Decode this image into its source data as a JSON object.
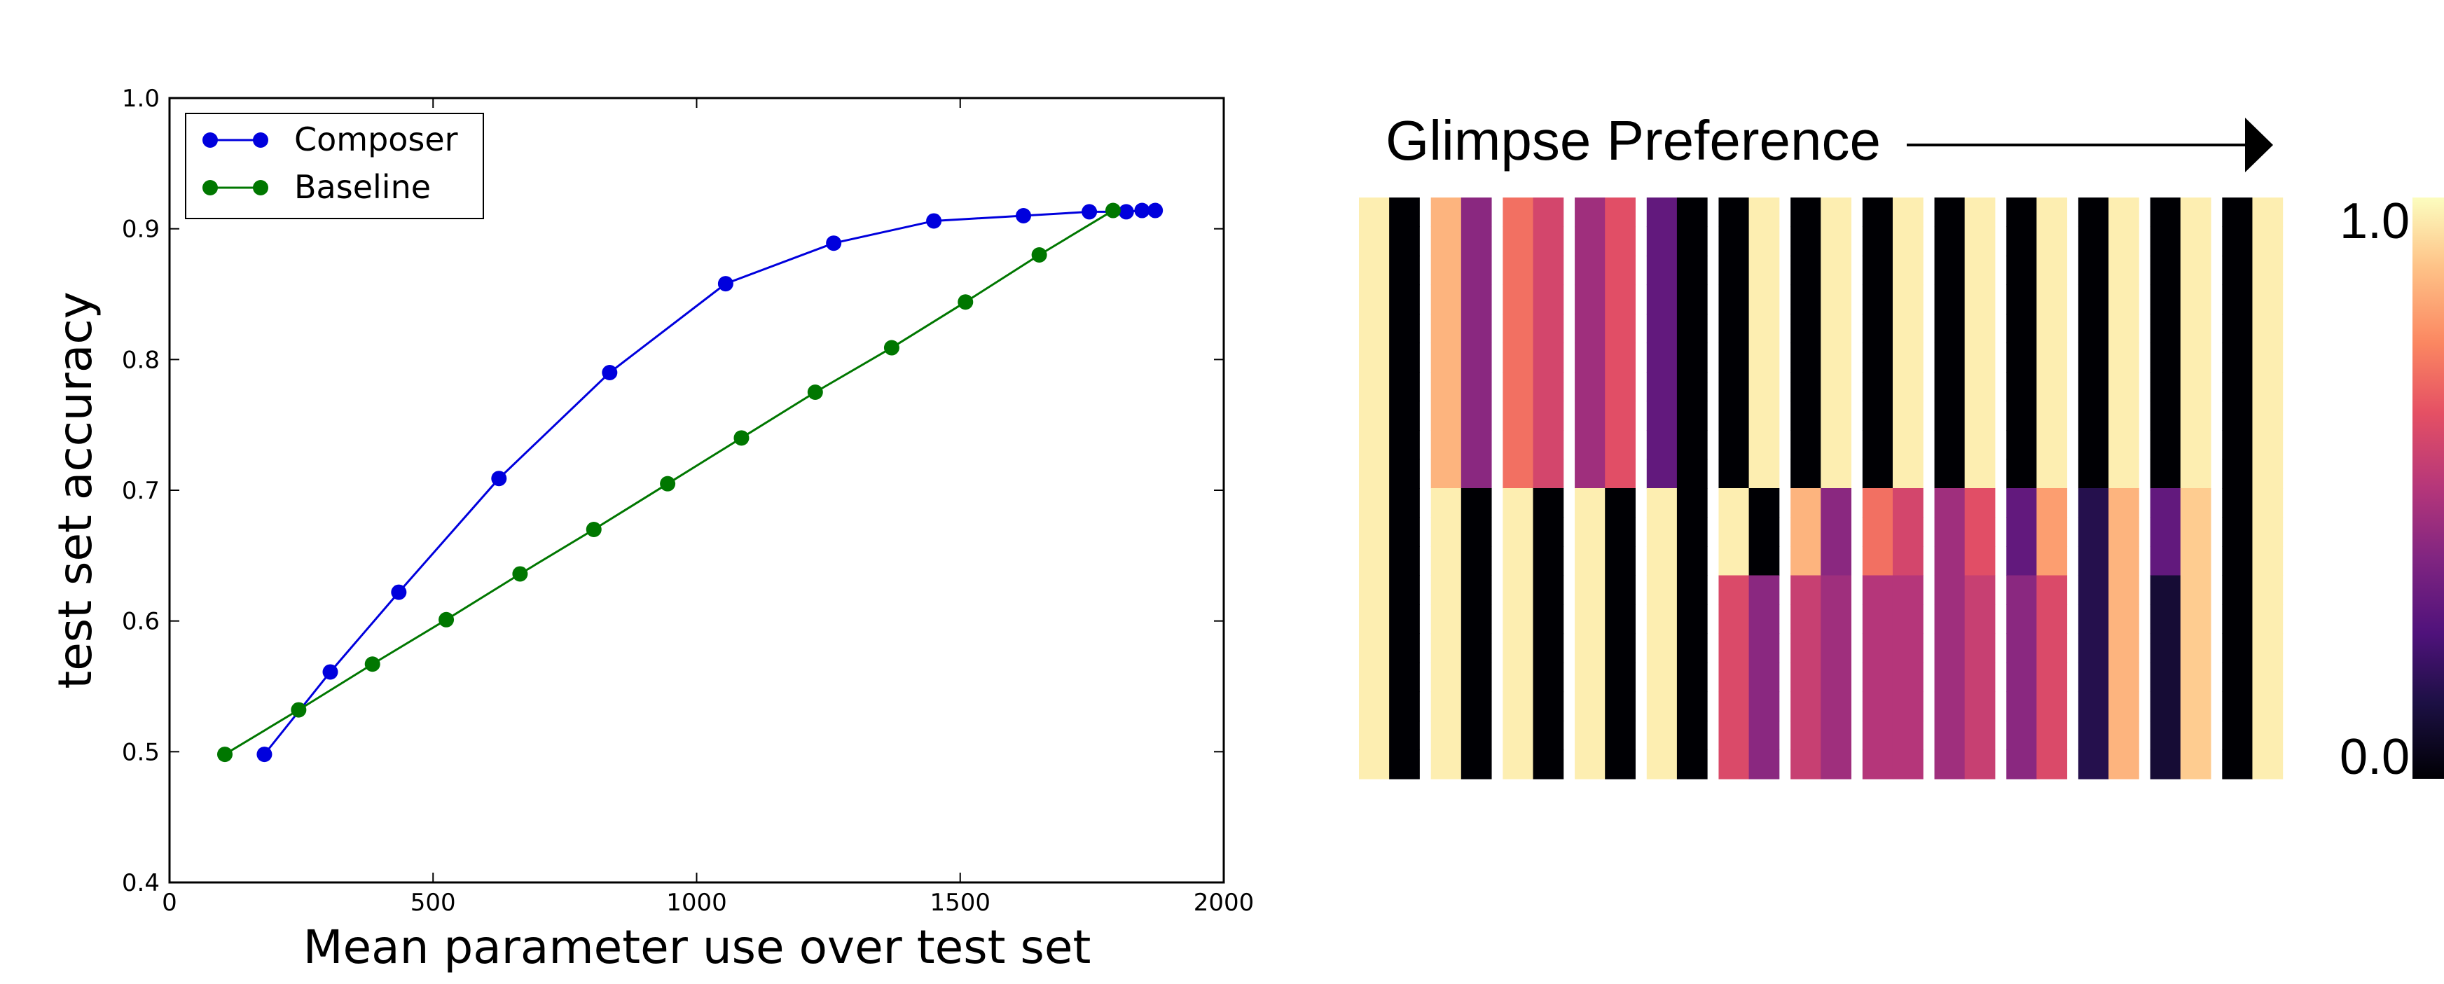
{
  "chart_data": [
    {
      "type": "line",
      "title": "",
      "xlabel": "Mean parameter use over test set",
      "ylabel": "test set accuracy",
      "xlim": [
        0,
        2000
      ],
      "ylim": [
        0.4,
        1.0
      ],
      "xticks": [
        "0",
        "500",
        "1000",
        "1500",
        "2000"
      ],
      "yticks": [
        "0.4",
        "0.5",
        "0.6",
        "0.7",
        "0.8",
        "0.9",
        "1.0"
      ],
      "grid": false,
      "legend_position": "top-left",
      "series": [
        {
          "name": "Composer",
          "color": "#0000dd",
          "x": [
            180,
            305,
            435,
            625,
            835,
            1055,
            1260,
            1450,
            1620,
            1745,
            1815,
            1845,
            1870
          ],
          "y": [
            0.498,
            0.561,
            0.622,
            0.709,
            0.79,
            0.858,
            0.889,
            0.906,
            0.91,
            0.913,
            0.913,
            0.914,
            0.914
          ]
        },
        {
          "name": "Baseline",
          "color": "#007700",
          "x": [
            105,
            245,
            385,
            525,
            665,
            805,
            945,
            1085,
            1225,
            1370,
            1510,
            1650,
            1790
          ],
          "y": [
            0.498,
            0.532,
            0.567,
            0.601,
            0.636,
            0.67,
            0.705,
            0.74,
            0.775,
            0.809,
            0.844,
            0.88,
            0.914
          ]
        }
      ]
    },
    {
      "type": "heatmap",
      "title": "Glimpse Preference",
      "colormap": "magma",
      "colorbar": {
        "max_label": "1.0",
        "min_label": "0.0",
        "range": [
          0.0,
          1.0
        ]
      },
      "rows": 20,
      "columns": 26,
      "values": [
        [
          0.97,
          0.0,
          0.85,
          0.4,
          0.7,
          0.58,
          0.45,
          0.62,
          0.3,
          0.0,
          0.0,
          0.97,
          0.0,
          0.97,
          0.0,
          0.97,
          0.0,
          0.97,
          0.0,
          0.97,
          0.0,
          0.97,
          0.0,
          0.97,
          0.0,
          0.97
        ],
        [
          0.97,
          0.0,
          0.85,
          0.4,
          0.7,
          0.58,
          0.45,
          0.62,
          0.3,
          0.0,
          0.0,
          0.97,
          0.0,
          0.97,
          0.0,
          0.97,
          0.0,
          0.97,
          0.0,
          0.97,
          0.0,
          0.97,
          0.0,
          0.97,
          0.0,
          0.97
        ],
        [
          0.97,
          0.0,
          0.85,
          0.4,
          0.7,
          0.58,
          0.45,
          0.62,
          0.3,
          0.0,
          0.0,
          0.97,
          0.0,
          0.97,
          0.0,
          0.97,
          0.0,
          0.97,
          0.0,
          0.97,
          0.0,
          0.97,
          0.0,
          0.97,
          0.0,
          0.97
        ],
        [
          0.97,
          0.0,
          0.85,
          0.4,
          0.7,
          0.58,
          0.45,
          0.62,
          0.3,
          0.0,
          0.0,
          0.97,
          0.0,
          0.97,
          0.0,
          0.97,
          0.0,
          0.97,
          0.0,
          0.97,
          0.0,
          0.97,
          0.0,
          0.97,
          0.0,
          0.97
        ],
        [
          0.97,
          0.0,
          0.85,
          0.4,
          0.7,
          0.58,
          0.45,
          0.62,
          0.3,
          0.0,
          0.0,
          0.97,
          0.0,
          0.97,
          0.0,
          0.97,
          0.0,
          0.97,
          0.0,
          0.97,
          0.0,
          0.97,
          0.0,
          0.97,
          0.0,
          0.97
        ],
        [
          0.97,
          0.0,
          0.85,
          0.4,
          0.7,
          0.58,
          0.45,
          0.62,
          0.3,
          0.0,
          0.0,
          0.97,
          0.0,
          0.97,
          0.0,
          0.97,
          0.0,
          0.97,
          0.0,
          0.97,
          0.0,
          0.97,
          0.0,
          0.97,
          0.0,
          0.97
        ],
        [
          0.97,
          0.0,
          0.85,
          0.4,
          0.7,
          0.58,
          0.45,
          0.62,
          0.3,
          0.0,
          0.0,
          0.97,
          0.0,
          0.97,
          0.0,
          0.97,
          0.0,
          0.97,
          0.0,
          0.97,
          0.0,
          0.97,
          0.0,
          0.97,
          0.0,
          0.97
        ],
        [
          0.97,
          0.0,
          0.85,
          0.4,
          0.7,
          0.58,
          0.45,
          0.62,
          0.3,
          0.0,
          0.0,
          0.97,
          0.0,
          0.97,
          0.0,
          0.97,
          0.0,
          0.97,
          0.0,
          0.97,
          0.0,
          0.97,
          0.0,
          0.97,
          0.0,
          0.97
        ],
        [
          0.97,
          0.0,
          0.85,
          0.4,
          0.7,
          0.58,
          0.45,
          0.62,
          0.3,
          0.0,
          0.0,
          0.97,
          0.0,
          0.97,
          0.0,
          0.97,
          0.0,
          0.97,
          0.0,
          0.97,
          0.0,
          0.97,
          0.0,
          0.97,
          0.0,
          0.97
        ],
        [
          0.97,
          0.0,
          0.85,
          0.4,
          0.7,
          0.58,
          0.45,
          0.62,
          0.3,
          0.0,
          0.0,
          0.97,
          0.0,
          0.97,
          0.0,
          0.97,
          0.0,
          0.97,
          0.0,
          0.97,
          0.0,
          0.97,
          0.0,
          0.97,
          0.0,
          0.97
        ],
        [
          0.97,
          0.0,
          0.97,
          0.0,
          0.97,
          0.0,
          0.97,
          0.0,
          0.97,
          0.0,
          0.97,
          0.0,
          0.85,
          0.4,
          0.7,
          0.58,
          0.45,
          0.62,
          0.3,
          0.8,
          0.15,
          0.85,
          0.3,
          0.9,
          0.0,
          0.97
        ],
        [
          0.97,
          0.0,
          0.97,
          0.0,
          0.97,
          0.0,
          0.97,
          0.0,
          0.97,
          0.0,
          0.97,
          0.0,
          0.85,
          0.4,
          0.7,
          0.58,
          0.45,
          0.62,
          0.3,
          0.8,
          0.15,
          0.85,
          0.3,
          0.9,
          0.0,
          0.97
        ],
        [
          0.97,
          0.0,
          0.97,
          0.0,
          0.97,
          0.0,
          0.97,
          0.0,
          0.97,
          0.0,
          0.97,
          0.0,
          0.85,
          0.4,
          0.7,
          0.58,
          0.45,
          0.62,
          0.3,
          0.8,
          0.15,
          0.85,
          0.3,
          0.9,
          0.0,
          0.97
        ],
        [
          0.97,
          0.0,
          0.97,
          0.0,
          0.97,
          0.0,
          0.97,
          0.0,
          0.97,
          0.0,
          0.6,
          0.4,
          0.55,
          0.45,
          0.5,
          0.5,
          0.45,
          0.55,
          0.4,
          0.6,
          0.15,
          0.85,
          0.1,
          0.9,
          0.0,
          0.97
        ],
        [
          0.97,
          0.0,
          0.97,
          0.0,
          0.97,
          0.0,
          0.97,
          0.0,
          0.97,
          0.0,
          0.6,
          0.4,
          0.55,
          0.45,
          0.5,
          0.5,
          0.45,
          0.55,
          0.4,
          0.6,
          0.15,
          0.85,
          0.1,
          0.9,
          0.0,
          0.97
        ],
        [
          0.97,
          0.0,
          0.97,
          0.0,
          0.97,
          0.0,
          0.97,
          0.0,
          0.97,
          0.0,
          0.6,
          0.4,
          0.55,
          0.45,
          0.5,
          0.5,
          0.45,
          0.55,
          0.4,
          0.6,
          0.15,
          0.85,
          0.1,
          0.9,
          0.0,
          0.97
        ],
        [
          0.97,
          0.0,
          0.97,
          0.0,
          0.97,
          0.0,
          0.97,
          0.0,
          0.97,
          0.0,
          0.6,
          0.4,
          0.55,
          0.45,
          0.5,
          0.5,
          0.45,
          0.55,
          0.4,
          0.6,
          0.15,
          0.85,
          0.1,
          0.9,
          0.0,
          0.97
        ],
        [
          0.97,
          0.0,
          0.97,
          0.0,
          0.97,
          0.0,
          0.97,
          0.0,
          0.97,
          0.0,
          0.6,
          0.4,
          0.55,
          0.45,
          0.5,
          0.5,
          0.45,
          0.55,
          0.4,
          0.6,
          0.15,
          0.85,
          0.1,
          0.9,
          0.0,
          0.97
        ],
        [
          0.97,
          0.0,
          0.97,
          0.0,
          0.97,
          0.0,
          0.97,
          0.0,
          0.97,
          0.0,
          0.6,
          0.4,
          0.55,
          0.45,
          0.5,
          0.5,
          0.45,
          0.55,
          0.4,
          0.6,
          0.15,
          0.85,
          0.1,
          0.9,
          0.0,
          0.97
        ],
        [
          0.97,
          0.0,
          0.97,
          0.0,
          0.97,
          0.0,
          0.97,
          0.0,
          0.97,
          0.0,
          0.6,
          0.4,
          0.55,
          0.45,
          0.5,
          0.5,
          0.45,
          0.55,
          0.4,
          0.6,
          0.15,
          0.85,
          0.1,
          0.9,
          0.0,
          0.97
        ]
      ]
    }
  ]
}
